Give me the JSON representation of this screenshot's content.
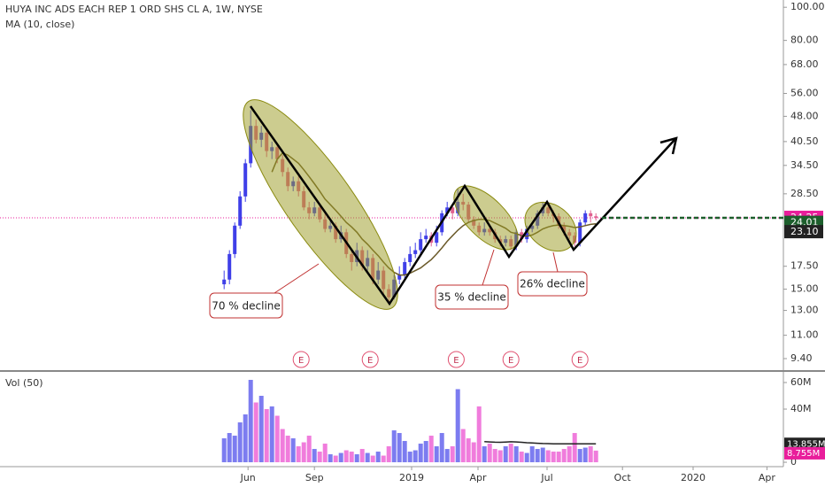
{
  "chart_data": [
    {
      "type": "candlestick",
      "title": "HUYA INC ADS EACH REP 1 ORD SHS CL A, 1W, NYSE",
      "open": [
        15.5,
        16,
        19,
        23,
        28,
        35,
        45,
        41,
        43,
        38,
        39,
        36,
        33,
        30,
        31,
        29,
        26,
        25,
        26,
        24,
        22.5,
        23,
        21,
        22,
        19,
        18,
        19.5,
        17.5,
        18.5,
        16,
        17,
        15,
        14.2,
        16,
        16.5,
        18,
        19,
        19.5,
        21,
        21.5,
        20.5,
        22,
        25,
        26,
        25,
        27,
        26.5,
        24,
        23,
        22,
        22.5,
        22,
        21,
        20.5,
        21,
        20,
        22,
        21,
        22.5,
        23,
        25,
        26,
        25,
        24.5,
        23,
        22,
        21.5,
        20.5,
        23.5,
        25,
        24.5
      ],
      "high": [
        17,
        19.5,
        23.5,
        29,
        36,
        50,
        47,
        45,
        44,
        40.5,
        40,
        37,
        34,
        32,
        32,
        30,
        27,
        27,
        26.5,
        25,
        24,
        23.5,
        23,
        22.5,
        19.5,
        20.5,
        20,
        19.5,
        19,
        18,
        17.5,
        15.5,
        16.5,
        17.5,
        18.5,
        20,
        20.5,
        22,
        22.5,
        22,
        23,
        25.5,
        27,
        26.5,
        29.5,
        28.5,
        27,
        24.5,
        23.5,
        23.5,
        23,
        22.5,
        21.5,
        21.5,
        21.5,
        22.5,
        22.5,
        23,
        23.5,
        25.5,
        27,
        26.5,
        25.5,
        25,
        23.5,
        22.5,
        22,
        24,
        25.5,
        25.5,
        25
      ],
      "low": [
        15,
        15.5,
        18.5,
        22.5,
        27,
        34,
        40,
        39,
        36.5,
        36,
        35,
        32,
        29,
        29,
        28,
        25.5,
        24,
        24.5,
        23.5,
        22,
        22,
        20.5,
        20.5,
        18.5,
        17,
        17.5,
        17,
        17,
        15.5,
        15.5,
        14.5,
        13.6,
        14,
        15.5,
        16,
        17.5,
        18.5,
        19,
        20.5,
        20,
        20,
        21.5,
        24.5,
        24,
        24.5,
        25.5,
        23.5,
        22.5,
        21.5,
        21.5,
        21.5,
        20.5,
        20,
        20,
        19.5,
        19.5,
        20.5,
        20.5,
        22,
        22.5,
        24.5,
        24.5,
        23.5,
        22.5,
        21.5,
        21,
        20,
        20,
        23,
        23.5,
        23.8
      ],
      "close": [
        16,
        19,
        23,
        28,
        35,
        45,
        41,
        43,
        38,
        39,
        36,
        33,
        30,
        31,
        29,
        26,
        25,
        26,
        24,
        22.5,
        23,
        21,
        22,
        19,
        18,
        19.5,
        17.5,
        18.5,
        16,
        17,
        15,
        14.2,
        16,
        16.5,
        18,
        19,
        19.5,
        21,
        21.5,
        20.5,
        22,
        25,
        26,
        25,
        27,
        26.5,
        24,
        23,
        22,
        22.5,
        22,
        21,
        20.5,
        21,
        20,
        22,
        21,
        22.5,
        23,
        25,
        26,
        25,
        24.5,
        23,
        22,
        21.5,
        20.5,
        23.5,
        25,
        24.5,
        24.25
      ],
      "up_color": "#3f3fe8",
      "down_color": "#e0608f",
      "series": [
        {
          "name": "MA (10, close)",
          "color": "#6b5a2a",
          "values": [
            null,
            null,
            null,
            null,
            null,
            null,
            null,
            null,
            null,
            33,
            36,
            37.5,
            37,
            36,
            35,
            33.5,
            32,
            30.5,
            29,
            27.5,
            26.5,
            25.5,
            24.5,
            23.5,
            22.8,
            22,
            21,
            20.3,
            19.5,
            18.8,
            18,
            17.3,
            16.8,
            16.5,
            16.5,
            16.7,
            17,
            17.3,
            17.8,
            18.3,
            19,
            19.8,
            20.7,
            21.5,
            22.3,
            23,
            23.5,
            23.8,
            24,
            24,
            23.8,
            23.4,
            23,
            22.6,
            22,
            21.8,
            21.5,
            21.4,
            21.6,
            22,
            22.5,
            22.8,
            23,
            23.1,
            23,
            22.9,
            22.7,
            22.8,
            23,
            23.2,
            23.3
          ]
        }
      ],
      "log_scale": true,
      "ylim": [
        8.7,
        105
      ],
      "xlim": [
        -42.2,
        105.3
      ],
      "yticks": [
        {
          "value": 100,
          "label": "100.00"
        },
        {
          "value": 80,
          "label": "80.00"
        },
        {
          "value": 68,
          "label": "68.00"
        },
        {
          "value": 56,
          "label": "56.00"
        },
        {
          "value": 48,
          "label": "48.00"
        },
        {
          "value": 40.5,
          "label": "40.50"
        },
        {
          "value": 34.5,
          "label": "34.50"
        },
        {
          "value": 28.5,
          "label": "28.50"
        },
        {
          "value": 17.5,
          "label": "17.50"
        },
        {
          "value": 15,
          "label": "15.00"
        },
        {
          "value": 13,
          "label": "13.00"
        },
        {
          "value": 11,
          "label": "11.00"
        },
        {
          "value": 9.4,
          "label": "9.40"
        }
      ],
      "xticks": [
        {
          "value": 4.5,
          "label": "Jun"
        },
        {
          "value": 17,
          "label": "Sep"
        },
        {
          "value": 35.3,
          "label": "2019"
        },
        {
          "value": 47.8,
          "label": "Apr"
        },
        {
          "value": 60.8,
          "label": "Jul"
        },
        {
          "value": 75,
          "label": "Oct"
        },
        {
          "value": 88.3,
          "label": "2020"
        },
        {
          "value": 102.2,
          "label": "Apr"
        }
      ],
      "price_markers": [
        {
          "value": 24.25,
          "color": "#e91e9b"
        },
        {
          "value": 24.01,
          "color": "#1d5e2c"
        },
        {
          "value": 23.1,
          "label": "23.10",
          "color": "#222222"
        }
      ],
      "events": [
        "E",
        "E",
        "E",
        "E",
        "E"
      ],
      "annotations": [
        "70 % decline",
        "35 % decline",
        "26% decline"
      ],
      "grid": false
    },
    {
      "type": "bar",
      "title": "Vol (50)",
      "up_color": "#7c7cf0",
      "down_color": "#f07cdc",
      "values": [
        18,
        22,
        20,
        30,
        36,
        62,
        45,
        50,
        40,
        42,
        35,
        25,
        20,
        18,
        12,
        15,
        20,
        10,
        8,
        14,
        6,
        5,
        7,
        9,
        8,
        6,
        10,
        7,
        5,
        8,
        5,
        12,
        24,
        22,
        16,
        8,
        9,
        14,
        16,
        20,
        12,
        22,
        10,
        12,
        55,
        25,
        18,
        15,
        42,
        12,
        14,
        10,
        9,
        12,
        14,
        12,
        8,
        7,
        12,
        10,
        11,
        9,
        8,
        8,
        10,
        12,
        22,
        10,
        11,
        12,
        8.755
      ],
      "series": [
        {
          "name": "Vol MA",
          "color": "#222222",
          "values": [
            null,
            null,
            null,
            null,
            null,
            null,
            null,
            null,
            null,
            null,
            null,
            null,
            null,
            null,
            null,
            null,
            null,
            null,
            null,
            null,
            null,
            null,
            null,
            null,
            null,
            null,
            null,
            null,
            null,
            null,
            null,
            null,
            null,
            null,
            null,
            null,
            null,
            null,
            null,
            null,
            null,
            null,
            null,
            null,
            null,
            null,
            null,
            null,
            null,
            15.5,
            15.3,
            15.1,
            15,
            15.2,
            15.4,
            15.3,
            15,
            14.7,
            14.5,
            14.3,
            14.1,
            14,
            13.9,
            13.8,
            13.8,
            13.8,
            13.8,
            13.85,
            13.85,
            13.85,
            13.855
          ]
        }
      ],
      "ylim": [
        -3.3,
        68
      ],
      "yticks": [
        {
          "value": 60,
          "label": "60M"
        },
        {
          "value": 40,
          "label": "40M"
        },
        0
      ],
      "value_markers": [
        {
          "value": 13.855,
          "label": "13.855M",
          "color": "#222222"
        },
        {
          "value": 8.755,
          "label": "8.755M",
          "color": "#e91e9b"
        }
      ]
    }
  ]
}
